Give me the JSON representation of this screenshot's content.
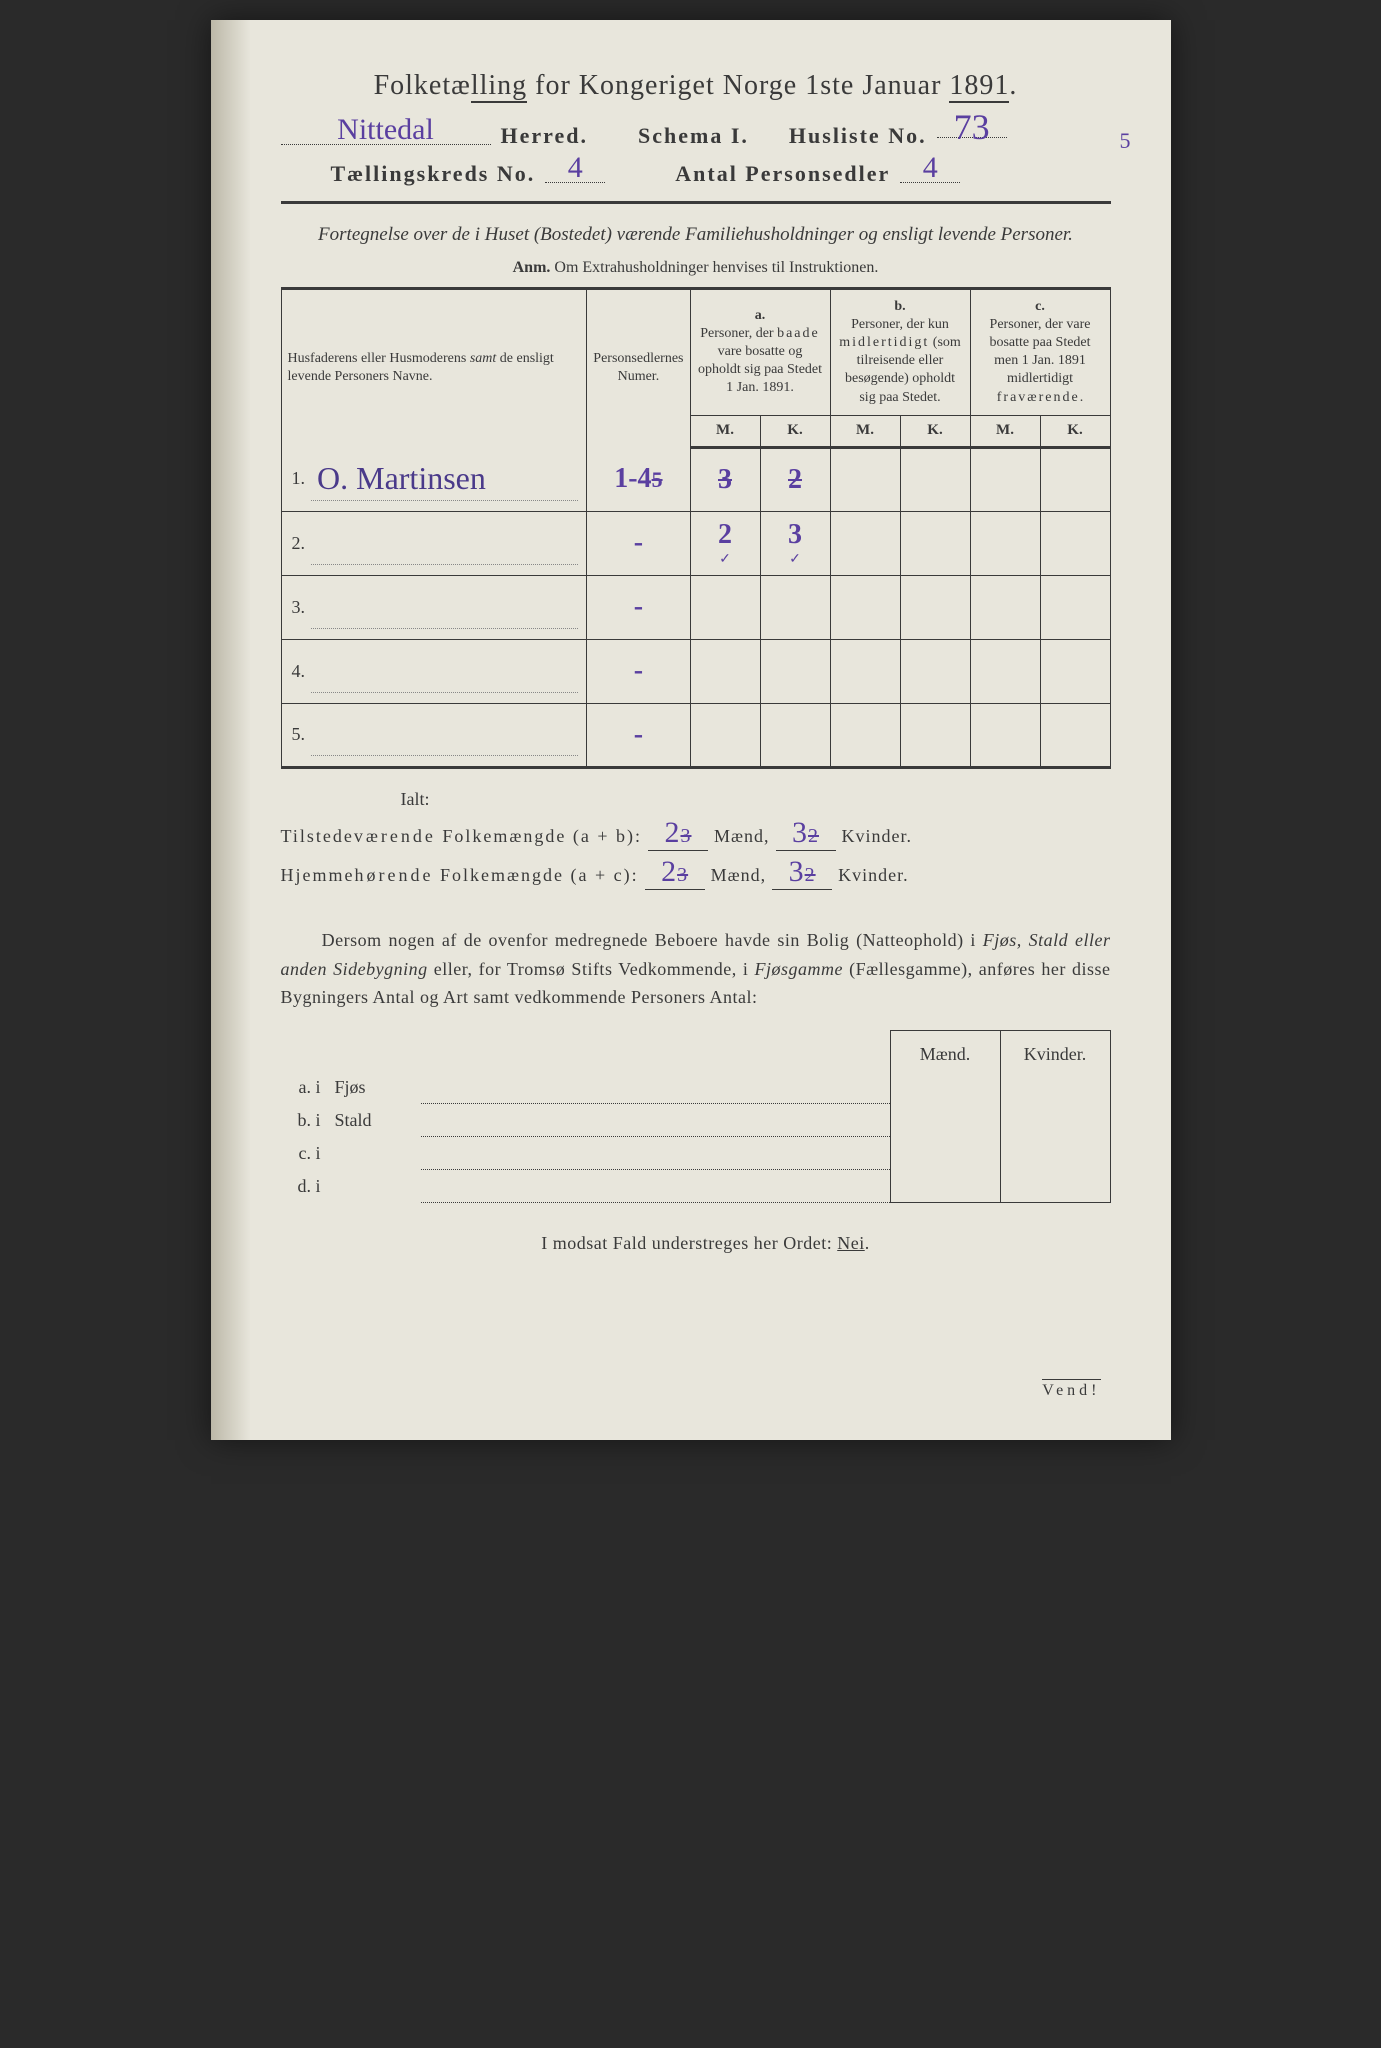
{
  "title": {
    "main": "Folketælling for Kongeriget Norge 1ste Januar 1891.",
    "herred_value": "Nittedal",
    "herred_label": "Herred.",
    "schema_label": "Schema I.",
    "husliste_label": "Husliste No.",
    "husliste_value": "73",
    "kreds_label": "Tællingskreds No.",
    "kreds_value": "4",
    "personsedler_label": "Antal Personsedler",
    "personsedler_value": "4",
    "side_annotation": "5"
  },
  "subtitle": "Fortegnelse over de i Huset (Bostedet) værende Familiehusholdninger og ensligt levende Personer.",
  "anm": {
    "label": "Anm.",
    "text": "Om Extrahusholdninger henvises til Instruktionen."
  },
  "table": {
    "headers": {
      "name": "Husfaderens eller Husmoderens samt de ensligt levende Personers Navne.",
      "numer": "Personsedlernes Numer.",
      "col_a_label": "a.",
      "col_a": "Personer, der baade vare bosatte og opholdt sig paa Stedet 1 Jan. 1891.",
      "col_b_label": "b.",
      "col_b": "Personer, der kun midlertidigt (som tilreisende eller besøgende) opholdt sig paa Stedet.",
      "col_c_label": "c.",
      "col_c": "Personer, der vare bosatte paa Stedet men 1 Jan. 1891 midlertidigt fraværende.",
      "M": "M.",
      "K": "K."
    },
    "rows": [
      {
        "n": "1.",
        "name": "O. Martinsen",
        "numer": "1-4",
        "numer_struck": "5",
        "aM": "3",
        "aK": "2",
        "aM_struck": true,
        "aK_struck": true,
        "bM": "",
        "bK": "",
        "cM": "",
        "cK": ""
      },
      {
        "n": "2.",
        "name": "",
        "numer": "-",
        "aM": "2",
        "aK": "3",
        "aM_check": true,
        "aK_check": true,
        "bM": "",
        "bK": "",
        "cM": "",
        "cK": ""
      },
      {
        "n": "3.",
        "name": "",
        "numer": "-",
        "aM": "",
        "aK": "",
        "bM": "",
        "bK": "",
        "cM": "",
        "cK": ""
      },
      {
        "n": "4.",
        "name": "",
        "numer": "-",
        "aM": "",
        "aK": "",
        "bM": "",
        "bK": "",
        "cM": "",
        "cK": ""
      },
      {
        "n": "5.",
        "name": "",
        "numer": "-",
        "aM": "",
        "aK": "",
        "bM": "",
        "bK": "",
        "cM": "",
        "cK": ""
      }
    ]
  },
  "ialt": "Ialt:",
  "sums": {
    "tilstede_label": "Tilstedeværende Folkemængde (a + b):",
    "hjemme_label": "Hjemmehørende Folkemængde (a + c):",
    "maend": "Mænd,",
    "kvinder": "Kvinder.",
    "tilstede_m": "2",
    "tilstede_m_old": "3",
    "tilstede_k": "3",
    "tilstede_k_old": "2",
    "hjemme_m": "2",
    "hjemme_m_old": "3",
    "hjemme_k": "3",
    "hjemme_k_old": "2"
  },
  "para": "Dersom nogen af de ovenfor medregnede Beboere havde sin Bolig (Natteophold) i Fjøs, Stald eller anden Sidebygning eller, for Tromsø Stifts Vedkommende, i Fjøsgamme (Fællesgamme), anføres her disse Bygningers Antal og Art samt vedkommende Personers Antal:",
  "small": {
    "maend": "Mænd.",
    "kvinder": "Kvinder.",
    "rows": [
      {
        "lab": "a.  i",
        "word": "Fjøs"
      },
      {
        "lab": "b.  i",
        "word": "Stald"
      },
      {
        "lab": "c.  i",
        "word": ""
      },
      {
        "lab": "d.  i",
        "word": ""
      }
    ]
  },
  "footer": "I modsat Fald understreges her Ordet: Nei.",
  "vend": "Vend!",
  "colors": {
    "paper": "#e8e6dc",
    "ink": "#3a3a3a",
    "handwriting": "#5a3fa0",
    "background": "#2a2a2a"
  },
  "typography": {
    "title_fontsize": 28,
    "body_fontsize": 18,
    "table_header_fontsize": 14,
    "handwriting_fontsize": 30
  }
}
